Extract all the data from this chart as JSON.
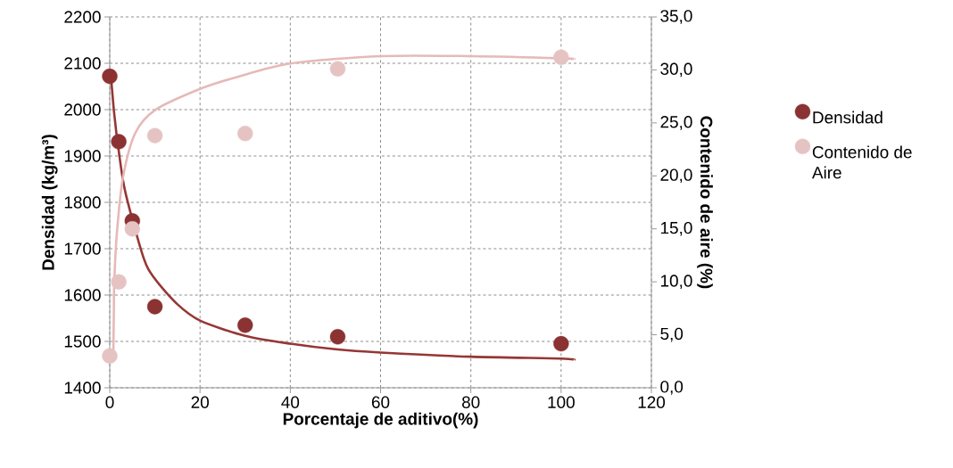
{
  "chart_data": {
    "type": "scatter",
    "xlabel": "Porcentaje de aditivo(%)",
    "ylabel": "Densidad (kg/m³)",
    "y2label": "Contenido de aire (%)",
    "xlim": [
      0,
      120
    ],
    "xticks": [
      0,
      20,
      40,
      60,
      80,
      100,
      120
    ],
    "ylim": [
      1400,
      2200
    ],
    "yticks": [
      1400,
      1500,
      1600,
      1700,
      1800,
      1900,
      2000,
      2100,
      2200
    ],
    "y2lim": [
      0,
      35
    ],
    "y2ticks": [
      {
        "value": 0,
        "label": "0,0"
      },
      {
        "value": 5,
        "label": "5,0"
      },
      {
        "value": 10,
        "label": "10,0"
      },
      {
        "value": 15,
        "label": "15,0"
      },
      {
        "value": 20,
        "label": "20,0"
      },
      {
        "value": 25,
        "label": "25,0"
      },
      {
        "value": 30,
        "label": "30,0"
      },
      {
        "value": 35,
        "label": "35,0"
      }
    ],
    "grid": true,
    "legend": "right",
    "series": [
      {
        "name": "Densidad",
        "type": "scatter",
        "marker": "circle",
        "color": "#8b3232",
        "x": [
          0,
          2,
          5,
          10,
          30,
          50.5,
          100
        ],
        "values": [
          2072,
          1931,
          1760,
          1575,
          1535,
          1510,
          1495
        ]
      },
      {
        "name": "Contenido de Aire",
        "type": "scatter",
        "marker": "circle",
        "axis": "y2",
        "color": "#e6c3c3",
        "x": [
          0,
          2,
          5,
          10,
          30,
          50.5,
          100
        ],
        "values": [
          3.0,
          10.0,
          15.0,
          23.8,
          24.0,
          30.1,
          31.2
        ]
      },
      {
        "type": "line",
        "marker": "none",
        "color": "#953735",
        "x": [
          0.2,
          1,
          2,
          3.5,
          7.5,
          10,
          15,
          20,
          30,
          40,
          50,
          60,
          80,
          100,
          103
        ],
        "values": [
          2080,
          1990,
          1910,
          1820,
          1680,
          1635,
          1580,
          1545,
          1512,
          1495,
          1483,
          1476,
          1467,
          1463,
          1460
        ]
      },
      {
        "type": "line",
        "marker": "none",
        "axis": "y2",
        "color": "#e6b9b8",
        "x": [
          0.8,
          0.9,
          1.0,
          1.6,
          2.9,
          5.6,
          10,
          20,
          28,
          40,
          60,
          80,
          100,
          103
        ],
        "values": [
          3.5,
          7,
          10,
          14.7,
          19.8,
          24.0,
          26.2,
          28.2,
          29.3,
          30.6,
          31.3,
          31.3,
          31.1,
          31.0
        ]
      }
    ]
  }
}
